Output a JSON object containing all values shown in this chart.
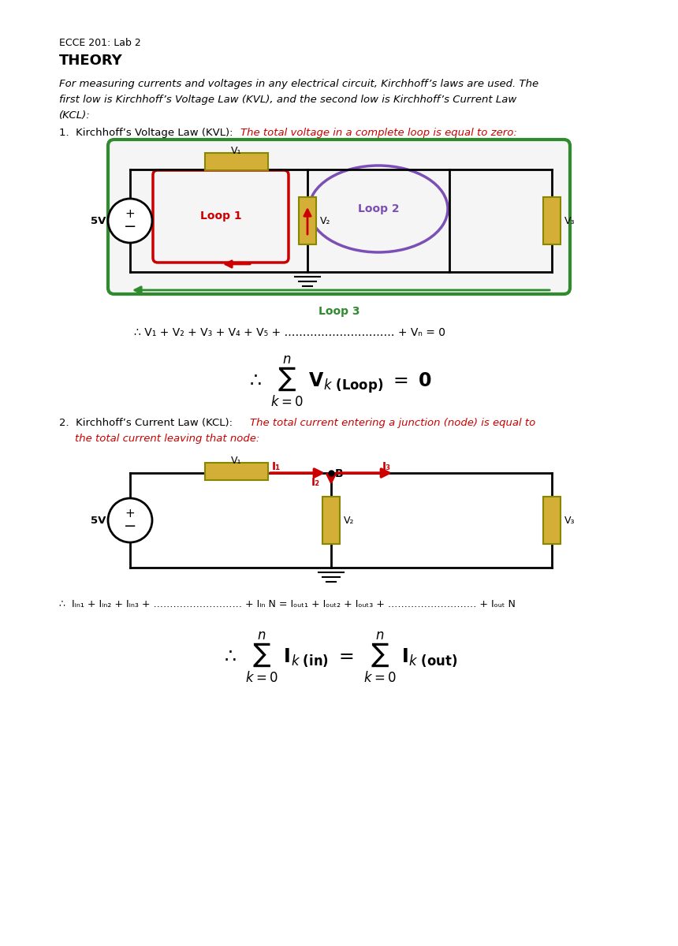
{
  "title": "ECCE 201: Lab 2",
  "section": "THEORY",
  "intro_text": "For measuring currents and voltages in any electrical circuit, Kirchhoff’s laws are used. The\nfirst low is Kirchhoff’s Voltage Law (KVL), and the second low is Kirchhoff’s Current Law\n(KCL):",
  "kvl_label": "1.  Kirchhoff’s Voltage Law (KVL): ",
  "kvl_desc": "The total voltage in a complete loop is equal to zero:",
  "kvl_eq1": "∴ V₁ + V₂ + V₃ + V₄ + V₅ + …………………… + Vₙ = 0",
  "kcl_label": "2.  Kirchhoff’s Current Law (KCL): ",
  "kcl_desc": "The total current entering a junction (node) is equal to\n    the total current leaving that node:",
  "kcl_eq1": "∴ Iᵢₙ₁ + Iᵢₙ₂ + Iᵢₙ₃ + …………………… + Iᵢₙ N = Iₒᵤₜ₁ + Iₒᵤₜ₂ + Iₒᵤₜ₃ + …………………… + Iₒᵤₜ N",
  "bg_color": "#ffffff",
  "text_color": "#000000",
  "red_color": "#cc0000",
  "green_color": "#2e8b2e",
  "resistor_color": "#d4af37",
  "loop1_color": "#cc0000",
  "loop2_color": "#7b4fb5",
  "loop3_color": "#2e8b2e"
}
